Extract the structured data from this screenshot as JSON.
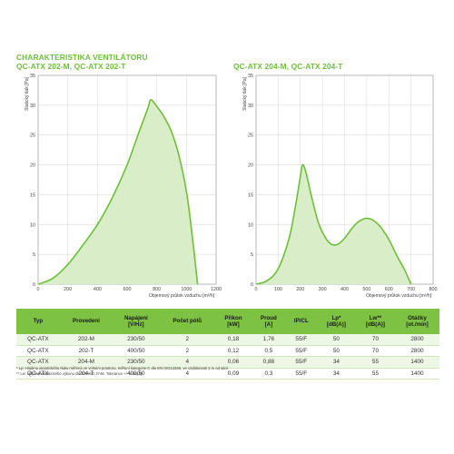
{
  "header": {
    "left_title_line1": "CHARAKTERISTIKA VENTILÁTORU",
    "left_title_line2": "QC-ATX 202-M, QC-ATX 202-T",
    "right_title": "QC-ATX 204-M, QC-ATX 204-T"
  },
  "colors": {
    "accent": "#7dc242",
    "curve": "#6dbf3a",
    "fill": "#d9eec8",
    "grid": "#d6d6d6"
  },
  "chart_data": [
    {
      "type": "area",
      "title": "QC-ATX 202-M, QC-ATX 202-T",
      "xlabel": "Objemový průtok vzduchu [m³/h]",
      "ylabel": "Statický tlak [Pa]",
      "xlim": [
        0,
        1200
      ],
      "ylim": [
        0,
        35
      ],
      "xticks": [
        0,
        200,
        400,
        600,
        800,
        1000,
        1200
      ],
      "yticks": [
        0,
        5,
        10,
        15,
        20,
        25,
        30,
        35
      ],
      "grid": true,
      "x": [
        0,
        100,
        200,
        300,
        400,
        500,
        600,
        680,
        740,
        760,
        800,
        850,
        900,
        950,
        1000,
        1030,
        1060,
        1075
      ],
      "y": [
        0,
        1.0,
        3.3,
        6.5,
        10.0,
        14.5,
        20.0,
        25.5,
        29.5,
        30.9,
        29.8,
        28.0,
        25.5,
        21.5,
        15.5,
        10.0,
        3.5,
        0
      ]
    },
    {
      "type": "area",
      "title": "QC-ATX 204-M, QC-ATX 204-T",
      "xlabel": "Objemový průtok vzduchu [m³/h]",
      "ylabel": "Statický tlak [Pa]",
      "xlim": [
        0,
        800
      ],
      "ylim": [
        0,
        35
      ],
      "xticks": [
        0,
        100,
        200,
        300,
        400,
        500,
        600,
        700,
        800
      ],
      "yticks": [
        0,
        5,
        10,
        15,
        20,
        25,
        30,
        35
      ],
      "grid": true,
      "x": [
        0,
        50,
        100,
        150,
        180,
        200,
        210,
        225,
        250,
        280,
        310,
        340,
        370,
        400,
        430,
        460,
        490,
        510,
        530,
        560,
        600,
        640,
        670,
        700
      ],
      "y": [
        0,
        0.6,
        2.6,
        7.8,
        13.5,
        18.0,
        20.0,
        18.8,
        14.8,
        10.5,
        8.0,
        6.7,
        6.7,
        7.7,
        9.2,
        10.4,
        11.0,
        11.0,
        10.7,
        9.7,
        7.5,
        4.5,
        2.5,
        0
      ]
    }
  ],
  "table": {
    "headers": [
      [
        "Typ"
      ],
      [
        "Provedení"
      ],
      [
        "Napájení",
        "[V/Hz]"
      ],
      [
        "Počet pólů"
      ],
      [
        "Příkon",
        "[kW]"
      ],
      [
        "Proud",
        "[A]"
      ],
      [
        "IP/CL"
      ],
      [
        "Lp*",
        "[dB(A)]"
      ],
      [
        "Lw**",
        "[dB(A)]"
      ],
      [
        "Otáčky",
        "[ot./min]"
      ]
    ],
    "rows": [
      [
        "QC-ATX",
        "202-M",
        "230/50",
        "2",
        "0,18",
        "1,76",
        "55/F",
        "50",
        "70",
        "2800"
      ],
      [
        "QC-ATX",
        "202-T",
        "400/50",
        "2",
        "0,12",
        "0,5",
        "55/F",
        "50",
        "70",
        "2800"
      ],
      [
        "QC-ATX",
        "204-M",
        "230/50",
        "4",
        "0,06",
        "0,88",
        "55/F",
        "34",
        "55",
        "1400"
      ],
      [
        "QC-ATX",
        "204-T",
        "400/50",
        "4",
        "0,09",
        "0,3",
        "55/F",
        "34",
        "55",
        "1400"
      ]
    ]
  },
  "notes": {
    "line1": "* Lp: Hladina akustického tlaku měřená ve volném prostoru, měření kategorie C dle EN ISO13349, ve vzdálenosti 3 m od sání",
    "line2": "** Lw: Hladina akustického výkonu dle EN ISO 3746. Tolerance +/- 3 dB(A)"
  }
}
